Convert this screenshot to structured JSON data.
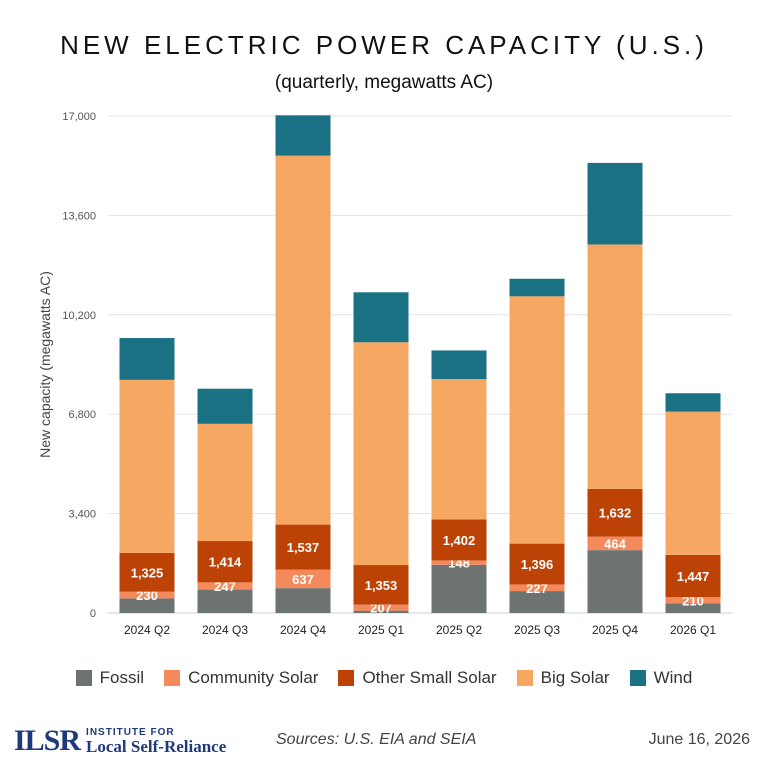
{
  "chart_data": {
    "type": "bar",
    "stacked": true,
    "title": "NEW ELECTRIC POWER CAPACITY (U.S.)",
    "subtitle": "(quarterly, megawatts AC)",
    "ylabel": "New capacity (megawatts AC)",
    "ylim": [
      0,
      17000
    ],
    "yticks": [
      0,
      3400,
      6800,
      10200,
      13600,
      17000
    ],
    "ytick_labels": [
      "0",
      "3,400",
      "6,800",
      "10,200",
      "13,600",
      "17,000"
    ],
    "grid": true,
    "legend_position": "bottom",
    "categories": [
      "2024 Q2",
      "2024 Q3",
      "2024 Q4",
      "2025 Q1",
      "2025 Q2",
      "2025 Q3",
      "2025 Q4",
      "2026 Q1"
    ],
    "series": [
      {
        "name": "Fossil",
        "color": "#6d7370",
        "values": [
          500,
          800,
          850,
          80,
          1650,
          750,
          2150,
          330
        ],
        "labels": [
          "",
          "",
          "",
          "",
          "",
          "",
          "",
          ""
        ]
      },
      {
        "name": "Community Solar",
        "color": "#f48a5c",
        "values": [
          230,
          247,
          637,
          207,
          148,
          227,
          464,
          210
        ],
        "labels": [
          "230",
          "247",
          "637",
          "207",
          "148",
          "227",
          "464",
          "210"
        ]
      },
      {
        "name": "Other Small Solar",
        "color": "#bc4206",
        "values": [
          1325,
          1414,
          1537,
          1353,
          1402,
          1396,
          1632,
          1447
        ],
        "labels": [
          "1,325",
          "1,414",
          "1,537",
          "1,353",
          "1,402",
          "1,396",
          "1,632",
          "1,447"
        ]
      },
      {
        "name": "Big Solar",
        "color": "#f6a862",
        "values": [
          5920,
          4010,
          12620,
          7620,
          4800,
          8460,
          8360,
          4900
        ],
        "labels": [
          "",
          "",
          "",
          "",
          "",
          "",
          "",
          ""
        ]
      },
      {
        "name": "Wind",
        "color": "#1a7184",
        "values": [
          1430,
          1200,
          1380,
          1710,
          980,
          600,
          2790,
          630
        ],
        "labels": [
          "",
          "",
          "",
          "",
          "",
          "",
          "",
          ""
        ]
      }
    ]
  },
  "footer": {
    "logo_mark": "ILSR",
    "logo_small": "INSTITUTE FOR",
    "logo_big": "Local Self-Reliance",
    "sources": "Sources: U.S. EIA and SEIA",
    "date": "June 16, 2026"
  }
}
